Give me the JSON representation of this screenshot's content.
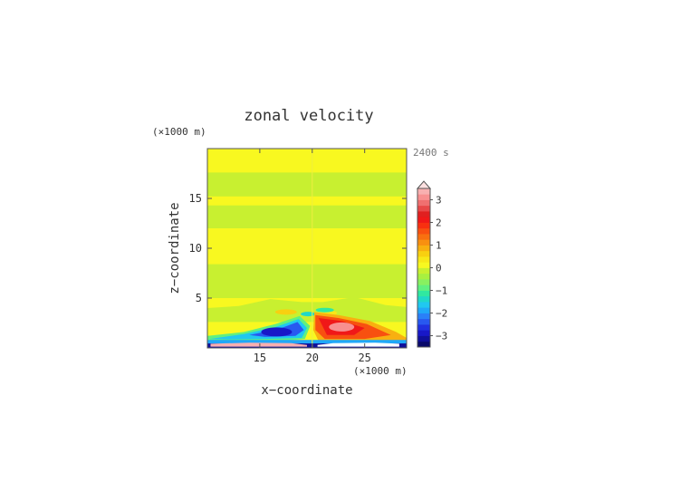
{
  "chart_data": {
    "type": "heatmap",
    "title": "zonal velocity",
    "xlabel": "x−coordinate",
    "ylabel": "z−coordinate",
    "x_unit_label": "(×1000 m)",
    "y_unit_label": "(×1000 m)",
    "time_label": "2400 s",
    "xlim": [
      10,
      29
    ],
    "ylim": [
      0,
      20
    ],
    "x_ticks": [
      15,
      20,
      25
    ],
    "y_ticks": [
      5,
      10,
      15
    ],
    "colorbar": {
      "levels": [
        -3.5,
        -3.25,
        -3,
        -2.75,
        -2.5,
        -2.25,
        -2,
        -1.75,
        -1.5,
        -1.25,
        -1,
        -0.75,
        -0.5,
        -0.25,
        0,
        0.25,
        0.5,
        0.75,
        1,
        1.25,
        1.5,
        1.75,
        2,
        2.25,
        2.5,
        2.75,
        3,
        3.25,
        3.5
      ],
      "colors": [
        "#0a0a6a",
        "#10109a",
        "#1818c8",
        "#2030e0",
        "#2858f0",
        "#2a80f8",
        "#20a8f8",
        "#20c8f0",
        "#20d8c8",
        "#30e8a0",
        "#60f080",
        "#88f060",
        "#a8f040",
        "#c8f030",
        "#f8f820",
        "#f8e818",
        "#f8d010",
        "#f8b010",
        "#f89010",
        "#f87010",
        "#f85010",
        "#f83010",
        "#f01818",
        "#e02020",
        "#e84848",
        "#f07070",
        "#f89090",
        "#f8b0b0"
      ],
      "tick_labels": [
        "3",
        "2",
        "1",
        "0",
        "−1",
        "−2",
        "−3"
      ],
      "tick_values": [
        3,
        2,
        1,
        0,
        -1,
        -2,
        -3
      ],
      "extend": "max"
    }
  }
}
